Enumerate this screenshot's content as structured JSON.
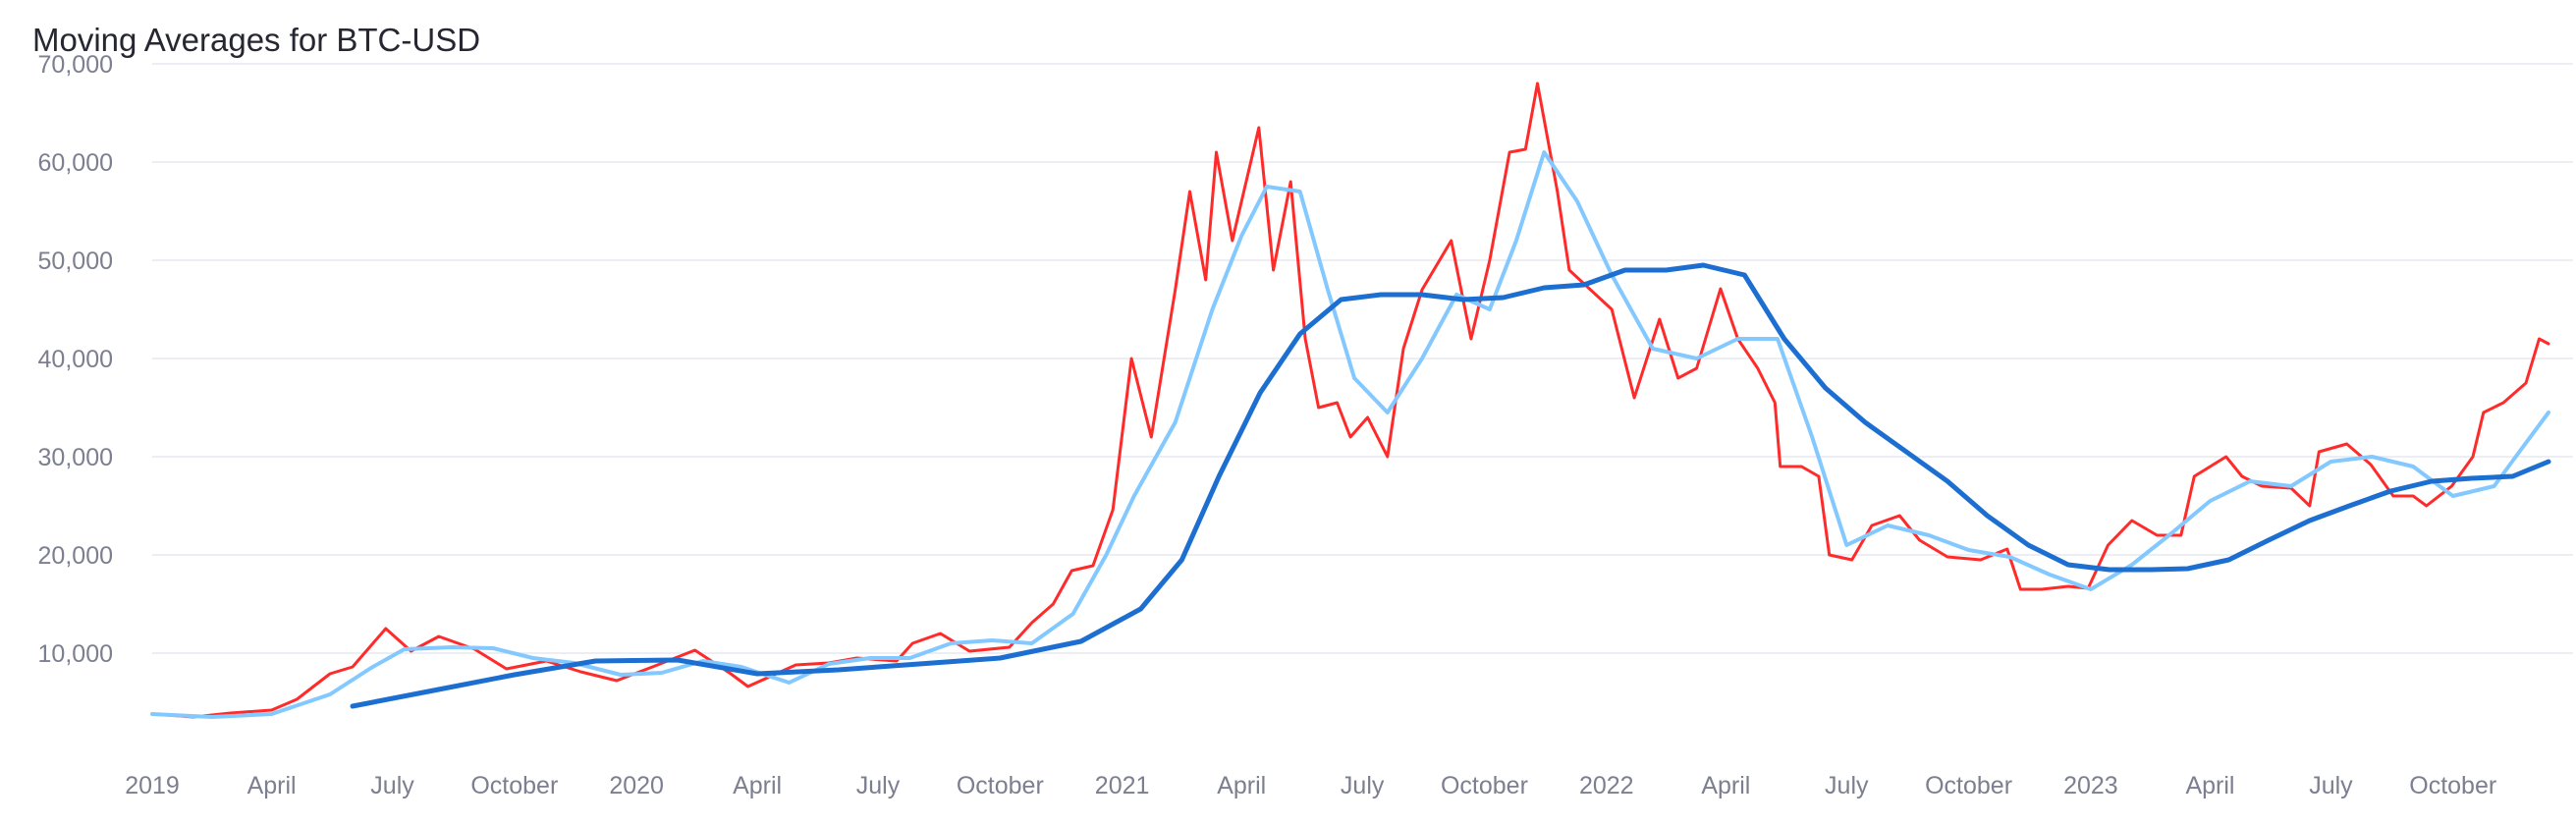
{
  "chart_data": {
    "type": "line",
    "title": "Moving Averages for BTC-USD",
    "xlabel": "",
    "ylabel": "",
    "grid": true,
    "legend": "none",
    "xlim": [
      "2019-01-01",
      "2023-12-12"
    ],
    "ylim": [
      0,
      72000
    ],
    "y_ticks": [
      10000,
      20000,
      30000,
      40000,
      50000,
      60000,
      70000
    ],
    "y_tick_labels": [
      "10,000",
      "20,000",
      "30,000",
      "40,000",
      "50,000",
      "60,000",
      "70,000"
    ],
    "x_ticks": [
      {
        "date": "2019-01-01",
        "label": "2019"
      },
      {
        "date": "2019-04-01",
        "label": "April"
      },
      {
        "date": "2019-07-01",
        "label": "July"
      },
      {
        "date": "2019-10-01",
        "label": "October"
      },
      {
        "date": "2020-01-01",
        "label": "2020"
      },
      {
        "date": "2020-04-01",
        "label": "April"
      },
      {
        "date": "2020-07-01",
        "label": "July"
      },
      {
        "date": "2020-10-01",
        "label": "October"
      },
      {
        "date": "2021-01-01",
        "label": "2021"
      },
      {
        "date": "2021-04-01",
        "label": "April"
      },
      {
        "date": "2021-07-01",
        "label": "July"
      },
      {
        "date": "2021-10-01",
        "label": "October"
      },
      {
        "date": "2022-01-01",
        "label": "2022"
      },
      {
        "date": "2022-04-01",
        "label": "April"
      },
      {
        "date": "2022-07-01",
        "label": "July"
      },
      {
        "date": "2022-10-01",
        "label": "October"
      },
      {
        "date": "2023-01-01",
        "label": "2023"
      },
      {
        "date": "2023-04-01",
        "label": "April"
      },
      {
        "date": "2023-07-01",
        "label": "July"
      },
      {
        "date": "2023-10-01",
        "label": "October"
      }
    ],
    "series": [
      {
        "color": "#ff2b2b",
        "x": [
          "2019-01-01",
          "2019-02-01",
          "2019-03-01",
          "2019-04-01",
          "2019-04-20",
          "2019-05-15",
          "2019-06-01",
          "2019-06-26",
          "2019-07-15",
          "2019-08-05",
          "2019-09-01",
          "2019-09-25",
          "2019-10-25",
          "2019-11-20",
          "2019-12-17",
          "2020-01-15",
          "2020-02-14",
          "2020-03-12",
          "2020-03-25",
          "2020-04-30",
          "2020-05-25",
          "2020-06-15",
          "2020-07-15",
          "2020-07-27",
          "2020-08-17",
          "2020-09-08",
          "2020-10-08",
          "2020-10-25",
          "2020-11-10",
          "2020-11-24",
          "2020-12-10",
          "2020-12-25",
          "2021-01-08",
          "2021-01-23",
          "2021-02-10",
          "2021-02-21",
          "2021-03-05",
          "2021-03-13",
          "2021-03-25",
          "2021-04-14",
          "2021-04-25",
          "2021-05-08",
          "2021-05-19",
          "2021-05-29",
          "2021-06-12",
          "2021-06-22",
          "2021-07-05",
          "2021-07-20",
          "2021-08-01",
          "2021-08-15",
          "2021-09-06",
          "2021-09-21",
          "2021-10-05",
          "2021-10-20",
          "2021-11-01",
          "2021-11-10",
          "2021-11-25",
          "2021-12-04",
          "2021-12-20",
          "2022-01-05",
          "2022-01-22",
          "2022-02-10",
          "2022-02-24",
          "2022-03-10",
          "2022-03-28",
          "2022-04-10",
          "2022-04-25",
          "2022-05-08",
          "2022-05-12",
          "2022-05-28",
          "2022-06-10",
          "2022-06-18",
          "2022-07-05",
          "2022-07-20",
          "2022-08-10",
          "2022-08-25",
          "2022-09-15",
          "2022-10-10",
          "2022-10-30",
          "2022-11-09",
          "2022-11-25",
          "2022-12-15",
          "2022-12-30",
          "2023-01-14",
          "2023-02-01",
          "2023-02-20",
          "2023-03-10",
          "2023-03-20",
          "2023-04-13",
          "2023-04-25",
          "2023-05-10",
          "2023-06-01",
          "2023-06-15",
          "2023-06-22",
          "2023-07-13",
          "2023-07-31",
          "2023-08-17",
          "2023-09-01",
          "2023-09-11",
          "2023-09-30",
          "2023-10-16",
          "2023-10-24",
          "2023-11-08",
          "2023-11-25",
          "2023-12-05",
          "2023-12-12"
        ],
        "values": [
          3800,
          3500,
          3900,
          4200,
          5300,
          7900,
          8600,
          12500,
          10200,
          11700,
          10400,
          8400,
          9200,
          8100,
          7200,
          8700,
          10300,
          7900,
          6600,
          8800,
          9000,
          9500,
          9200,
          11000,
          12000,
          10200,
          10600,
          13100,
          15000,
          18400,
          18900,
          24600,
          40000,
          32000,
          47000,
          57000,
          48000,
          61000,
          52000,
          63500,
          49000,
          58000,
          42000,
          35000,
          35500,
          32000,
          34000,
          30000,
          41000,
          47000,
          52000,
          42000,
          50000,
          61000,
          61300,
          68000,
          57000,
          49000,
          47000,
          45000,
          36000,
          44000,
          38000,
          39000,
          47100,
          42000,
          39000,
          35500,
          29000,
          29000,
          28000,
          20000,
          19500,
          23000,
          24000,
          21500,
          19800,
          19500,
          20600,
          16500,
          16500,
          16800,
          16600,
          21000,
          23500,
          22000,
          22000,
          28000,
          30000,
          28000,
          27000,
          26800,
          25000,
          30500,
          31300,
          29200,
          26000,
          26000,
          25000,
          27000,
          30000,
          34500,
          35500,
          37500,
          42000,
          41500
        ],
        "name": ""
      },
      {
        "color": "#83c9ff",
        "x": [
          "2019-01-01",
          "2019-02-15",
          "2019-04-01",
          "2019-05-15",
          "2019-06-15",
          "2019-07-10",
          "2019-08-15",
          "2019-09-15",
          "2019-10-15",
          "2019-11-15",
          "2019-12-20",
          "2020-01-20",
          "2020-02-20",
          "2020-03-20",
          "2020-04-25",
          "2020-05-25",
          "2020-06-25",
          "2020-07-25",
          "2020-08-25",
          "2020-09-25",
          "2020-10-25",
          "2020-11-25",
          "2020-12-20",
          "2021-01-10",
          "2021-02-10",
          "2021-03-10",
          "2021-04-01",
          "2021-04-20",
          "2021-05-15",
          "2021-06-05",
          "2021-06-25",
          "2021-07-20",
          "2021-08-15",
          "2021-09-10",
          "2021-10-05",
          "2021-10-25",
          "2021-11-15",
          "2021-12-10",
          "2022-01-05",
          "2022-02-05",
          "2022-03-10",
          "2022-04-10",
          "2022-05-10",
          "2022-06-05",
          "2022-07-01",
          "2022-08-01",
          "2022-09-01",
          "2022-10-01",
          "2022-11-01",
          "2022-12-01",
          "2023-01-01",
          "2023-02-01",
          "2023-03-01",
          "2023-04-01",
          "2023-05-01",
          "2023-06-01",
          "2023-07-01",
          "2023-08-01",
          "2023-09-01",
          "2023-10-01",
          "2023-11-01",
          "2023-11-20",
          "2023-12-12"
        ],
        "values": [
          3800,
          3500,
          3800,
          5800,
          8500,
          10400,
          10600,
          10500,
          9500,
          9000,
          7800,
          8000,
          9200,
          8600,
          7000,
          8900,
          9500,
          9500,
          11000,
          11300,
          11000,
          14000,
          20000,
          26000,
          33500,
          45000,
          52500,
          57500,
          57000,
          47000,
          38000,
          34500,
          40000,
          46500,
          45000,
          52000,
          61000,
          56000,
          48500,
          41000,
          40000,
          42000,
          42000,
          32000,
          21000,
          23000,
          22000,
          20500,
          19800,
          18000,
          16500,
          19000,
          22000,
          25500,
          27500,
          27000,
          29500,
          30000,
          29000,
          26000,
          27000,
          30500,
          34500
        ],
        "name": ""
      },
      {
        "color": "#1c6fd1",
        "x": [
          "2019-06-01",
          "2019-08-01",
          "2019-10-01",
          "2019-12-01",
          "2020-02-01",
          "2020-04-01",
          "2020-06-01",
          "2020-08-01",
          "2020-10-01",
          "2020-12-01",
          "2021-01-15",
          "2021-02-15",
          "2021-03-15",
          "2021-04-15",
          "2021-05-15",
          "2021-06-15",
          "2021-07-15",
          "2021-08-15",
          "2021-09-15",
          "2021-10-15",
          "2021-11-15",
          "2021-12-15",
          "2022-01-15",
          "2022-02-15",
          "2022-03-15",
          "2022-04-15",
          "2022-05-15",
          "2022-06-15",
          "2022-07-15",
          "2022-08-15",
          "2022-09-15",
          "2022-10-15",
          "2022-11-15",
          "2022-12-15",
          "2023-01-15",
          "2023-02-15",
          "2023-03-15",
          "2023-04-15",
          "2023-05-15",
          "2023-06-15",
          "2023-07-15",
          "2023-08-15",
          "2023-09-15",
          "2023-10-15",
          "2023-11-15",
          "2023-12-12"
        ],
        "values": [
          4600,
          6200,
          7800,
          9200,
          9300,
          7900,
          8300,
          8900,
          9500,
          11200,
          14500,
          19500,
          28000,
          36500,
          42500,
          46000,
          46500,
          46500,
          46000,
          46200,
          47200,
          47500,
          49000,
          49000,
          49500,
          48500,
          42000,
          37000,
          33500,
          30500,
          27500,
          24000,
          21000,
          19000,
          18500,
          18500,
          18600,
          19500,
          21500,
          23500,
          25000,
          26500,
          27500,
          27800,
          28000,
          29500
        ]
      }
    ]
  }
}
